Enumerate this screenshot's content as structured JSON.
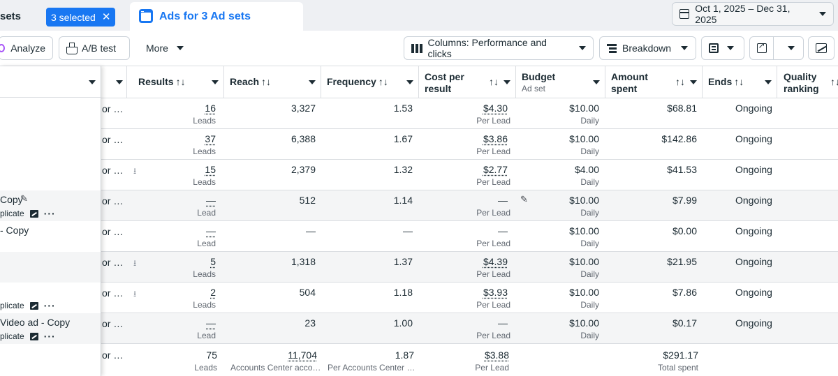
{
  "tabs": {
    "prev_label": "sets",
    "selected_label": "3 selected",
    "active_label": "Ads for 3 Ad sets"
  },
  "date_range": {
    "label": "Oct 1, 2025 – Dec 31, 2025"
  },
  "toolbar": {
    "analyze": "Analyze",
    "ab_test": "A/B test",
    "more": "More",
    "columns": "Columns: Performance and clicks",
    "breakdown": "Breakdown"
  },
  "columns": {
    "results": "Results",
    "reach": "Reach",
    "frequency": "Frequency",
    "cost_line1": "Cost per",
    "cost_line2": "result",
    "budget": "Budget",
    "budget_sub": "Ad set",
    "amount_line1": "Amount",
    "amount_line2": "spent",
    "ends": "Ends",
    "quality_line1": "Quality",
    "quality_line2": "ranking",
    "sort_glyph": "↑↓"
  },
  "rows": [
    {
      "name": "",
      "sub": "",
      "trunc": "or …",
      "dl": false,
      "results": "16",
      "results_sub": "Leads",
      "reach": "3,327",
      "frequency": "1.53",
      "cost": "$4.30",
      "cost_sub": "Per Lead",
      "budget": "$10.00",
      "budget_sub": "Daily",
      "spent": "$68.81",
      "ends": "Ongoing"
    },
    {
      "name": "",
      "sub": "",
      "trunc": "or …",
      "dl": false,
      "results": "37",
      "results_sub": "Leads",
      "reach": "6,388",
      "frequency": "1.67",
      "cost": "$3.86",
      "cost_sub": "Per Lead",
      "budget": "$10.00",
      "budget_sub": "Daily",
      "spent": "$142.86",
      "ends": "Ongoing"
    },
    {
      "name": "",
      "sub": "",
      "trunc": "or …",
      "dl": true,
      "results": "15",
      "results_sub": "Leads",
      "reach": "2,379",
      "frequency": "1.32",
      "cost": "$2.77",
      "cost_sub": "Per Lead",
      "budget": "$4.00",
      "budget_sub": "Daily",
      "spent": "$41.53",
      "ends": "Ongoing"
    },
    {
      "name": "Copy",
      "sub": "plicate",
      "trunc": "or …",
      "dl": false,
      "results": "—",
      "results_sub": "Lead",
      "reach": "512",
      "frequency": "1.14",
      "cost": "—",
      "cost_sub": "Per Lead",
      "budget": "$10.00",
      "budget_sub": "Daily",
      "spent": "$7.99",
      "ends": "Ongoing"
    },
    {
      "name": "- Copy",
      "sub": "",
      "trunc": "or …",
      "dl": false,
      "results": "—",
      "results_sub": "Lead",
      "reach": "—",
      "frequency": "—",
      "cost": "—",
      "cost_sub": "Per Lead",
      "budget": "$10.00",
      "budget_sub": "Daily",
      "spent": "$0.00",
      "ends": "Ongoing"
    },
    {
      "name": "",
      "sub": "",
      "trunc": "or …",
      "dl": true,
      "results": "5",
      "results_sub": "Leads",
      "reach": "1,318",
      "frequency": "1.37",
      "cost": "$4.39",
      "cost_sub": "Per Lead",
      "budget": "$10.00",
      "budget_sub": "Daily",
      "spent": "$21.95",
      "ends": "Ongoing"
    },
    {
      "name": "",
      "sub": "plicate",
      "trunc": "or …",
      "dl": true,
      "results": "2",
      "results_sub": "Leads",
      "reach": "504",
      "frequency": "1.18",
      "cost": "$3.93",
      "cost_sub": "Per Lead",
      "budget": "$10.00",
      "budget_sub": "Daily",
      "spent": "$7.86",
      "ends": "Ongoing"
    },
    {
      "name": "Video ad - Copy",
      "sub": "plicate",
      "trunc": "or …",
      "dl": false,
      "results": "—",
      "results_sub": "Lead",
      "reach": "23",
      "frequency": "1.00",
      "cost": "—",
      "cost_sub": "Per Lead",
      "budget": "$10.00",
      "budget_sub": "Daily",
      "spent": "$0.17",
      "ends": "Ongoing"
    }
  ],
  "totals": {
    "trunc": "or …",
    "results": "75",
    "results_sub": "Leads",
    "reach": "11,704",
    "reach_sub": "Accounts Center acco…",
    "frequency": "1.87",
    "frequency_sub": "Per Accounts Center …",
    "cost": "$3.88",
    "cost_sub": "Per Lead",
    "spent": "$291.17",
    "spent_sub": "Total spent"
  }
}
